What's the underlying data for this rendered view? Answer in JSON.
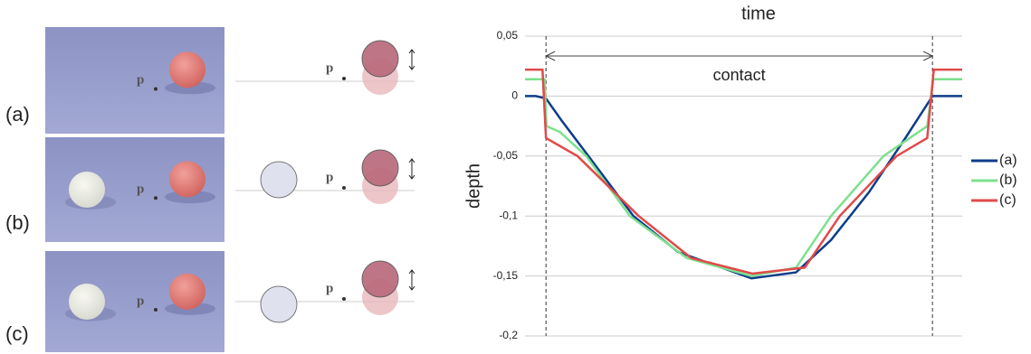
{
  "panels": [
    {
      "label": "(a)",
      "photo_point": "p",
      "diagram_point": "p"
    },
    {
      "label": "(b)",
      "photo_point": "p",
      "diagram_point": "p"
    },
    {
      "label": "(c)",
      "photo_point": "p",
      "diagram_point": "p"
    }
  ],
  "chart_data": {
    "type": "line",
    "title": "time",
    "y_label": "depth",
    "annotation": "contact",
    "xlim": [
      0,
      100
    ],
    "contact_x": [
      4.8,
      93.2
    ],
    "ylim": [
      -0.2,
      0.05
    ],
    "yticks": [
      {
        "value": 0.05,
        "label": "0,05"
      },
      0,
      {
        "value": -0.05,
        "label": "-0,05"
      },
      {
        "value": -0.1,
        "label": "-0,1"
      },
      {
        "value": -0.15,
        "label": "-0,15"
      },
      {
        "value": -0.2,
        "label": "-0,2"
      }
    ],
    "grid": true,
    "series": [
      {
        "name": "(a)",
        "color": "#0d3d8a",
        "x": [
          0,
          2.5,
          4.8,
          8.3,
          14.5,
          24.8,
          35,
          51.8,
          62,
          70,
          78.7,
          87,
          93.2,
          100
        ],
        "values": [
          0,
          0,
          -0.002,
          -0.02,
          -0.05,
          -0.1,
          -0.13,
          -0.152,
          -0.147,
          -0.12,
          -0.08,
          -0.035,
          0,
          0
        ]
      },
      {
        "name": "(b)",
        "color": "#7ee08e",
        "x": [
          0,
          4.5,
          4.9,
          8,
          14,
          24,
          37,
          51.8,
          62,
          70,
          82,
          92,
          93.4,
          100
        ],
        "values": [
          0.014,
          0.014,
          -0.025,
          -0.03,
          -0.05,
          -0.1,
          -0.135,
          -0.15,
          -0.143,
          -0.1,
          -0.05,
          -0.025,
          0.014,
          0.014
        ]
      },
      {
        "name": "(c)",
        "color": "#e04a4a",
        "x": [
          0,
          4,
          4.8,
          12,
          26,
          38,
          52,
          64,
          72,
          85,
          92,
          93.5,
          100
        ],
        "values": [
          0.022,
          0.022,
          -0.035,
          -0.05,
          -0.1,
          -0.135,
          -0.148,
          -0.143,
          -0.1,
          -0.05,
          -0.035,
          0.022,
          0.022
        ]
      }
    ]
  }
}
